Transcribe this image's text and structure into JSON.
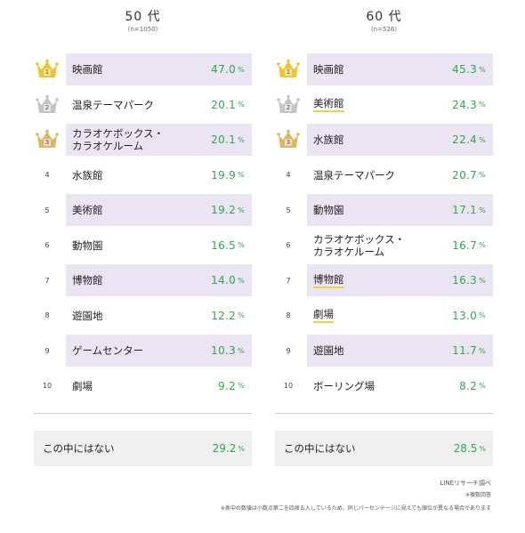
{
  "columns": [
    {
      "title": "50 代",
      "n": "(n=1050)",
      "rows": [
        {
          "rank": "1",
          "label": [
            "映画館"
          ],
          "value": "47.0",
          "crown": "gold",
          "band": true,
          "underline": false
        },
        {
          "rank": "2",
          "label": [
            "温泉テーマパーク"
          ],
          "value": "20.1",
          "crown": "silver",
          "band": false,
          "underline": false
        },
        {
          "rank": "3",
          "label": [
            "カラオケボックス・",
            "カラオケルーム"
          ],
          "value": "20.1",
          "crown": "bronze",
          "band": true,
          "underline": false
        },
        {
          "rank": "4",
          "label": [
            "水族館"
          ],
          "value": "19.9",
          "crown": null,
          "band": false,
          "underline": false
        },
        {
          "rank": "5",
          "label": [
            "美術館"
          ],
          "value": "19.2",
          "crown": null,
          "band": true,
          "underline": false
        },
        {
          "rank": "6",
          "label": [
            "動物園"
          ],
          "value": "16.5",
          "crown": null,
          "band": false,
          "underline": false
        },
        {
          "rank": "7",
          "label": [
            "博物館"
          ],
          "value": "14.0",
          "crown": null,
          "band": true,
          "underline": false
        },
        {
          "rank": "8",
          "label": [
            "遊園地"
          ],
          "value": "12.2",
          "crown": null,
          "band": false,
          "underline": false
        },
        {
          "rank": "9",
          "label": [
            "ゲームセンター"
          ],
          "value": "10.3",
          "crown": null,
          "band": true,
          "underline": false
        },
        {
          "rank": "10",
          "label": [
            "劇場"
          ],
          "value": "9.2",
          "crown": null,
          "band": false,
          "underline": false
        }
      ],
      "other": {
        "label": "この中にはない",
        "value": "29.2"
      }
    },
    {
      "title": "60 代",
      "n": "(n=526)",
      "rows": [
        {
          "rank": "1",
          "label": [
            "映画館"
          ],
          "value": "45.3",
          "crown": "gold",
          "band": true,
          "underline": false
        },
        {
          "rank": "2",
          "label": [
            "美術館"
          ],
          "value": "24.3",
          "crown": "silver",
          "band": false,
          "underline": true
        },
        {
          "rank": "3",
          "label": [
            "水族館"
          ],
          "value": "22.4",
          "crown": "bronze",
          "band": true,
          "underline": false
        },
        {
          "rank": "4",
          "label": [
            "温泉テーマパーク"
          ],
          "value": "20.7",
          "crown": null,
          "band": false,
          "underline": false
        },
        {
          "rank": "5",
          "label": [
            "動物園"
          ],
          "value": "17.1",
          "crown": null,
          "band": true,
          "underline": false
        },
        {
          "rank": "6",
          "label": [
            "カラオケボックス・",
            "カラオケルーム"
          ],
          "value": "16.7",
          "crown": null,
          "band": false,
          "underline": false
        },
        {
          "rank": "7",
          "label": [
            "博物館"
          ],
          "value": "16.3",
          "crown": null,
          "band": true,
          "underline": true
        },
        {
          "rank": "8",
          "label": [
            "劇場"
          ],
          "value": "13.0",
          "crown": null,
          "band": false,
          "underline": true
        },
        {
          "rank": "9",
          "label": [
            "遊園地"
          ],
          "value": "11.7",
          "crown": null,
          "band": true,
          "underline": false
        },
        {
          "rank": "10",
          "label": [
            "ボーリング場"
          ],
          "value": "8.2",
          "crown": null,
          "band": false,
          "underline": false
        }
      ],
      "other": {
        "label": "この中にはない",
        "value": "28.5"
      }
    }
  ],
  "percent_sign": "%",
  "footnotes": {
    "source": "LINEリサーチ調べ",
    "multi": "※複数回答",
    "rounding": "※表中の数値は小数点第二を四捨五入しているため、同じパーセンテージに見えても順位が異なる場合があります"
  },
  "colors": {
    "band": "#ebe4f3",
    "value": "#2fa84a",
    "underline": "#f4cf3a",
    "gold": "#f2c42c",
    "silver": "#c4c4c4",
    "bronze": "#dcb668",
    "other_bg": "#efefef"
  }
}
